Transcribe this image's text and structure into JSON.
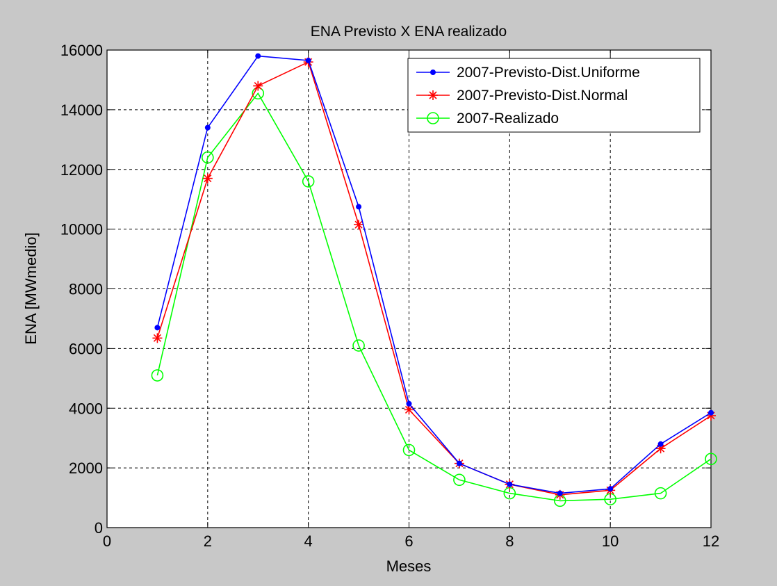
{
  "chart_data": {
    "type": "line",
    "title": "ENA Previsto X ENA realizado",
    "xlabel": "Meses",
    "ylabel": "ENA [MWmedio]",
    "xlim": [
      0,
      12
    ],
    "ylim": [
      0,
      16000
    ],
    "xticks": [
      0,
      2,
      4,
      6,
      8,
      10,
      12
    ],
    "yticks": [
      0,
      2000,
      4000,
      6000,
      8000,
      10000,
      12000,
      14000,
      16000
    ],
    "grid": true,
    "legend_position": "top-right",
    "x": [
      1,
      2,
      3,
      4,
      5,
      6,
      7,
      8,
      9,
      10,
      11,
      12
    ],
    "series": [
      {
        "name": "2007-Previsto-Dist.Uniforme",
        "color": "#0000ff",
        "marker": "dot",
        "values": [
          6700,
          13400,
          15800,
          15650,
          10750,
          4150,
          2150,
          1450,
          1150,
          1300,
          2800,
          3850
        ]
      },
      {
        "name": "2007-Previsto-Dist.Normal",
        "color": "#ff0000",
        "marker": "star",
        "values": [
          6350,
          11700,
          14800,
          15600,
          10150,
          3950,
          2150,
          1450,
          1100,
          1250,
          2650,
          3750
        ]
      },
      {
        "name": "2007-Realizado",
        "color": "#00ff00",
        "marker": "circle",
        "values": [
          5100,
          12400,
          14550,
          11600,
          6100,
          2600,
          1600,
          1150,
          900,
          950,
          1150,
          2300
        ]
      }
    ]
  }
}
